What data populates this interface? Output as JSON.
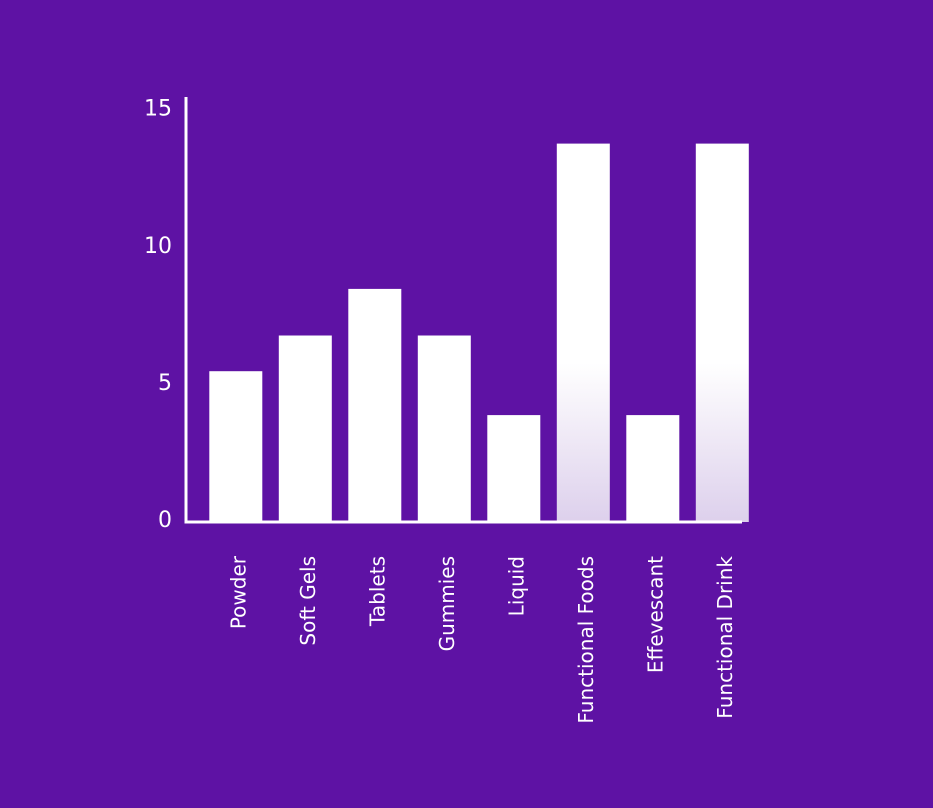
{
  "colors": {
    "background": "#5e12a4",
    "bar": "#ffffff",
    "bar_fade": "#ddd0ec",
    "axis": "#ffffff",
    "text": "#ffffff"
  },
  "chart_data": {
    "type": "bar",
    "title": "",
    "xlabel": "",
    "ylabel": "",
    "ylim": [
      0,
      15.5
    ],
    "yticks": [
      0,
      5,
      10,
      15
    ],
    "grid": false,
    "legend": "none",
    "categories": [
      "Powder",
      "Soft Gels",
      "Tablets",
      "Gummies",
      "Liquid",
      "Functional Foods",
      "Effevescant",
      "Functional Drink"
    ],
    "values": [
      5.5,
      6.8,
      8.5,
      6.8,
      3.9,
      13.8,
      3.9,
      13.8
    ],
    "faded_bottom": [
      false,
      false,
      false,
      false,
      false,
      true,
      false,
      true
    ]
  }
}
